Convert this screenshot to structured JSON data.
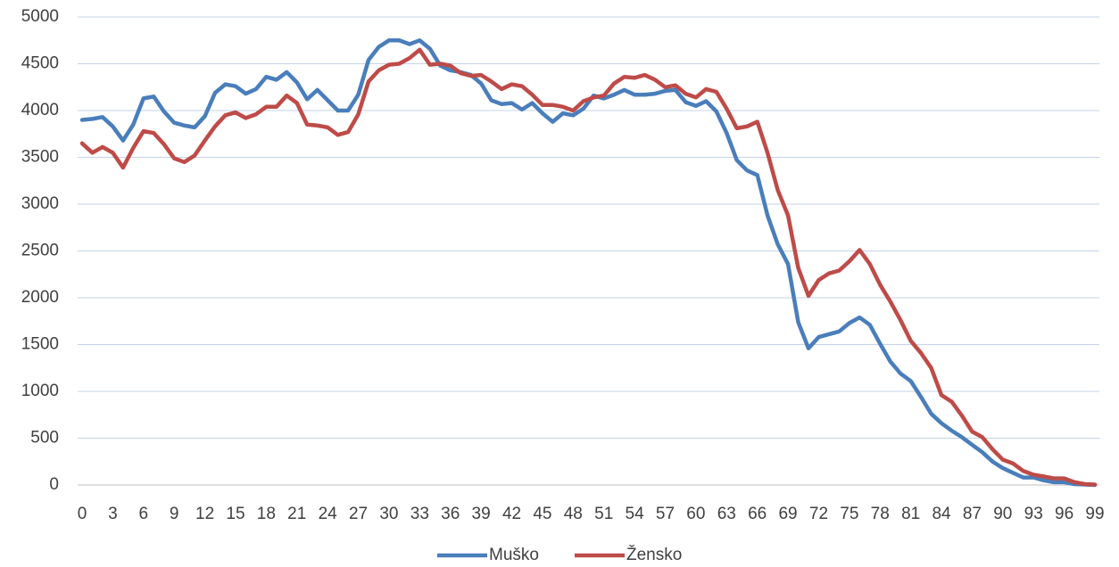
{
  "chart_data": {
    "type": "line",
    "x": [
      0,
      1,
      2,
      3,
      4,
      5,
      6,
      7,
      8,
      9,
      10,
      11,
      12,
      13,
      14,
      15,
      16,
      17,
      18,
      19,
      20,
      21,
      22,
      23,
      24,
      25,
      26,
      27,
      28,
      29,
      30,
      31,
      32,
      33,
      34,
      35,
      36,
      37,
      38,
      39,
      40,
      41,
      42,
      43,
      44,
      45,
      46,
      47,
      48,
      49,
      50,
      51,
      52,
      53,
      54,
      55,
      56,
      57,
      58,
      59,
      60,
      61,
      62,
      63,
      64,
      65,
      66,
      67,
      68,
      69,
      70,
      71,
      72,
      73,
      74,
      75,
      76,
      77,
      78,
      79,
      80,
      81,
      82,
      83,
      84,
      85,
      86,
      87,
      88,
      89,
      90,
      91,
      92,
      93,
      94,
      95,
      96,
      97,
      98,
      99
    ],
    "xlim": [
      0,
      99
    ],
    "xticks": [
      0,
      3,
      6,
      9,
      12,
      15,
      18,
      21,
      24,
      27,
      30,
      33,
      36,
      39,
      42,
      45,
      48,
      51,
      54,
      57,
      60,
      63,
      66,
      69,
      72,
      75,
      78,
      81,
      84,
      87,
      90,
      93,
      96,
      99
    ],
    "ylim": [
      0,
      5000
    ],
    "yticks": [
      0,
      500,
      1000,
      1500,
      2000,
      2500,
      3000,
      3500,
      4000,
      4500,
      5000
    ],
    "grid": true,
    "legend": "bottom",
    "series": [
      {
        "name": "Muško",
        "color": "#4a7ebb",
        "values": [
          3900,
          3910,
          3930,
          3830,
          3680,
          3850,
          4130,
          4150,
          3990,
          3870,
          3840,
          3820,
          3940,
          4190,
          4280,
          4260,
          4180,
          4230,
          4360,
          4330,
          4410,
          4300,
          4120,
          4220,
          4110,
          4000,
          4000,
          4170,
          4540,
          4680,
          4750,
          4750,
          4710,
          4750,
          4660,
          4480,
          4430,
          4410,
          4380,
          4290,
          4110,
          4070,
          4080,
          4010,
          4080,
          3970,
          3880,
          3970,
          3950,
          4020,
          4160,
          4130,
          4170,
          4220,
          4170,
          4170,
          4180,
          4210,
          4220,
          4090,
          4050,
          4100,
          3990,
          3760,
          3470,
          3360,
          3310,
          2880,
          2570,
          2360,
          1740,
          1460,
          1580,
          1610,
          1640,
          1730,
          1790,
          1710,
          1510,
          1320,
          1190,
          1110,
          940,
          760,
          660,
          580,
          510,
          430,
          350,
          250,
          180,
          130,
          80,
          80,
          50,
          30,
          30,
          10,
          5,
          0
        ]
      },
      {
        "name": "Žensko",
        "color": "#be4b48",
        "values": [
          3650,
          3550,
          3610,
          3550,
          3390,
          3600,
          3780,
          3760,
          3640,
          3490,
          3450,
          3520,
          3680,
          3830,
          3950,
          3980,
          3920,
          3960,
          4040,
          4040,
          4160,
          4080,
          3850,
          3840,
          3820,
          3740,
          3770,
          3960,
          4310,
          4430,
          4490,
          4500,
          4560,
          4650,
          4490,
          4500,
          4480,
          4400,
          4370,
          4380,
          4310,
          4230,
          4280,
          4260,
          4170,
          4060,
          4060,
          4040,
          4000,
          4100,
          4140,
          4160,
          4290,
          4360,
          4350,
          4380,
          4330,
          4250,
          4270,
          4180,
          4140,
          4230,
          4200,
          4020,
          3810,
          3830,
          3880,
          3550,
          3150,
          2880,
          2320,
          2020,
          2190,
          2260,
          2290,
          2390,
          2510,
          2360,
          2140,
          1960,
          1760,
          1540,
          1410,
          1250,
          960,
          890,
          740,
          570,
          510,
          380,
          270,
          230,
          150,
          110,
          90,
          70,
          70,
          30,
          10,
          5
        ]
      }
    ]
  }
}
